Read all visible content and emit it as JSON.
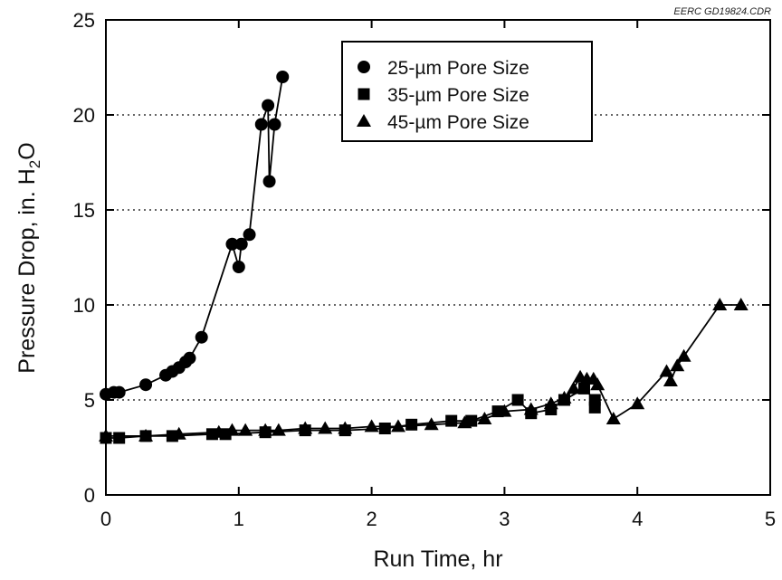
{
  "chart_data": {
    "type": "line",
    "xlabel": "Run Time, hr",
    "ylabel": "Pressure Drop, in. H",
    "ylabel_sub": "2",
    "ylabel_end": "O",
    "corner_label": "EERC GD19824.CDR",
    "xlim": [
      0,
      5
    ],
    "ylim": [
      0,
      25
    ],
    "x_ticks": [
      0,
      1,
      2,
      3,
      4,
      5
    ],
    "y_ticks": [
      0,
      5,
      10,
      15,
      20,
      25
    ],
    "gridlines_y": [
      5,
      10,
      15,
      20
    ],
    "grid_style": "dotted",
    "legend_position": "top-center",
    "series": [
      {
        "name": "25-µm Pore Size",
        "marker": "circle",
        "points": [
          [
            0,
            5.3
          ],
          [
            0.06,
            5.4
          ],
          [
            0.1,
            5.4
          ],
          [
            0.3,
            5.8
          ],
          [
            0.45,
            6.3
          ],
          [
            0.5,
            6.5
          ],
          [
            0.55,
            6.7
          ],
          [
            0.6,
            7.0
          ],
          [
            0.63,
            7.2
          ],
          [
            0.72,
            8.3
          ],
          [
            0.95,
            13.2
          ],
          [
            1.0,
            12.0
          ],
          [
            1.02,
            13.2
          ],
          [
            1.08,
            13.7
          ],
          [
            1.17,
            19.5
          ],
          [
            1.22,
            20.5
          ],
          [
            1.23,
            16.5
          ],
          [
            1.27,
            19.5
          ],
          [
            1.33,
            22.0
          ]
        ]
      },
      {
        "name": "35-µm Pore Size",
        "marker": "square",
        "points": [
          [
            0,
            3.0
          ],
          [
            0.1,
            3.0
          ],
          [
            0.3,
            3.1
          ],
          [
            0.5,
            3.1
          ],
          [
            0.8,
            3.2
          ],
          [
            0.9,
            3.2
          ],
          [
            1.2,
            3.3
          ],
          [
            1.5,
            3.4
          ],
          [
            1.8,
            3.4
          ],
          [
            2.1,
            3.5
          ],
          [
            2.3,
            3.7
          ],
          [
            2.6,
            3.9
          ],
          [
            2.75,
            3.9
          ],
          [
            2.95,
            4.4
          ],
          [
            3.1,
            5.0
          ],
          [
            3.2,
            4.3
          ],
          [
            3.35,
            4.5
          ],
          [
            3.45,
            5.0
          ],
          [
            3.6,
            5.6
          ],
          [
            3.68,
            5.0
          ],
          [
            3.68,
            4.6
          ]
        ]
      },
      {
        "name": "45-µm Pore Size",
        "marker": "triangle",
        "points": [
          [
            0,
            3.1
          ],
          [
            0.3,
            3.1
          ],
          [
            0.55,
            3.2
          ],
          [
            0.85,
            3.3
          ],
          [
            0.95,
            3.4
          ],
          [
            1.05,
            3.4
          ],
          [
            1.2,
            3.4
          ],
          [
            1.3,
            3.4
          ],
          [
            1.5,
            3.5
          ],
          [
            1.65,
            3.5
          ],
          [
            1.8,
            3.5
          ],
          [
            2.0,
            3.6
          ],
          [
            2.2,
            3.6
          ],
          [
            2.45,
            3.7
          ],
          [
            2.7,
            3.8
          ],
          [
            2.85,
            4.0
          ],
          [
            3.0,
            4.4
          ],
          [
            3.2,
            4.5
          ],
          [
            3.35,
            4.8
          ],
          [
            3.45,
            5.1
          ],
          [
            3.52,
            5.6
          ],
          [
            3.57,
            6.2
          ],
          [
            3.62,
            6.1
          ],
          [
            3.67,
            6.1
          ],
          [
            3.7,
            5.8
          ],
          [
            3.82,
            4.0
          ],
          [
            4.0,
            4.8
          ],
          [
            4.22,
            6.5
          ],
          [
            4.25,
            6.0
          ],
          [
            4.3,
            6.8
          ],
          [
            4.35,
            7.3
          ],
          [
            4.62,
            10.0
          ],
          [
            4.78,
            10.0
          ]
        ]
      }
    ]
  }
}
